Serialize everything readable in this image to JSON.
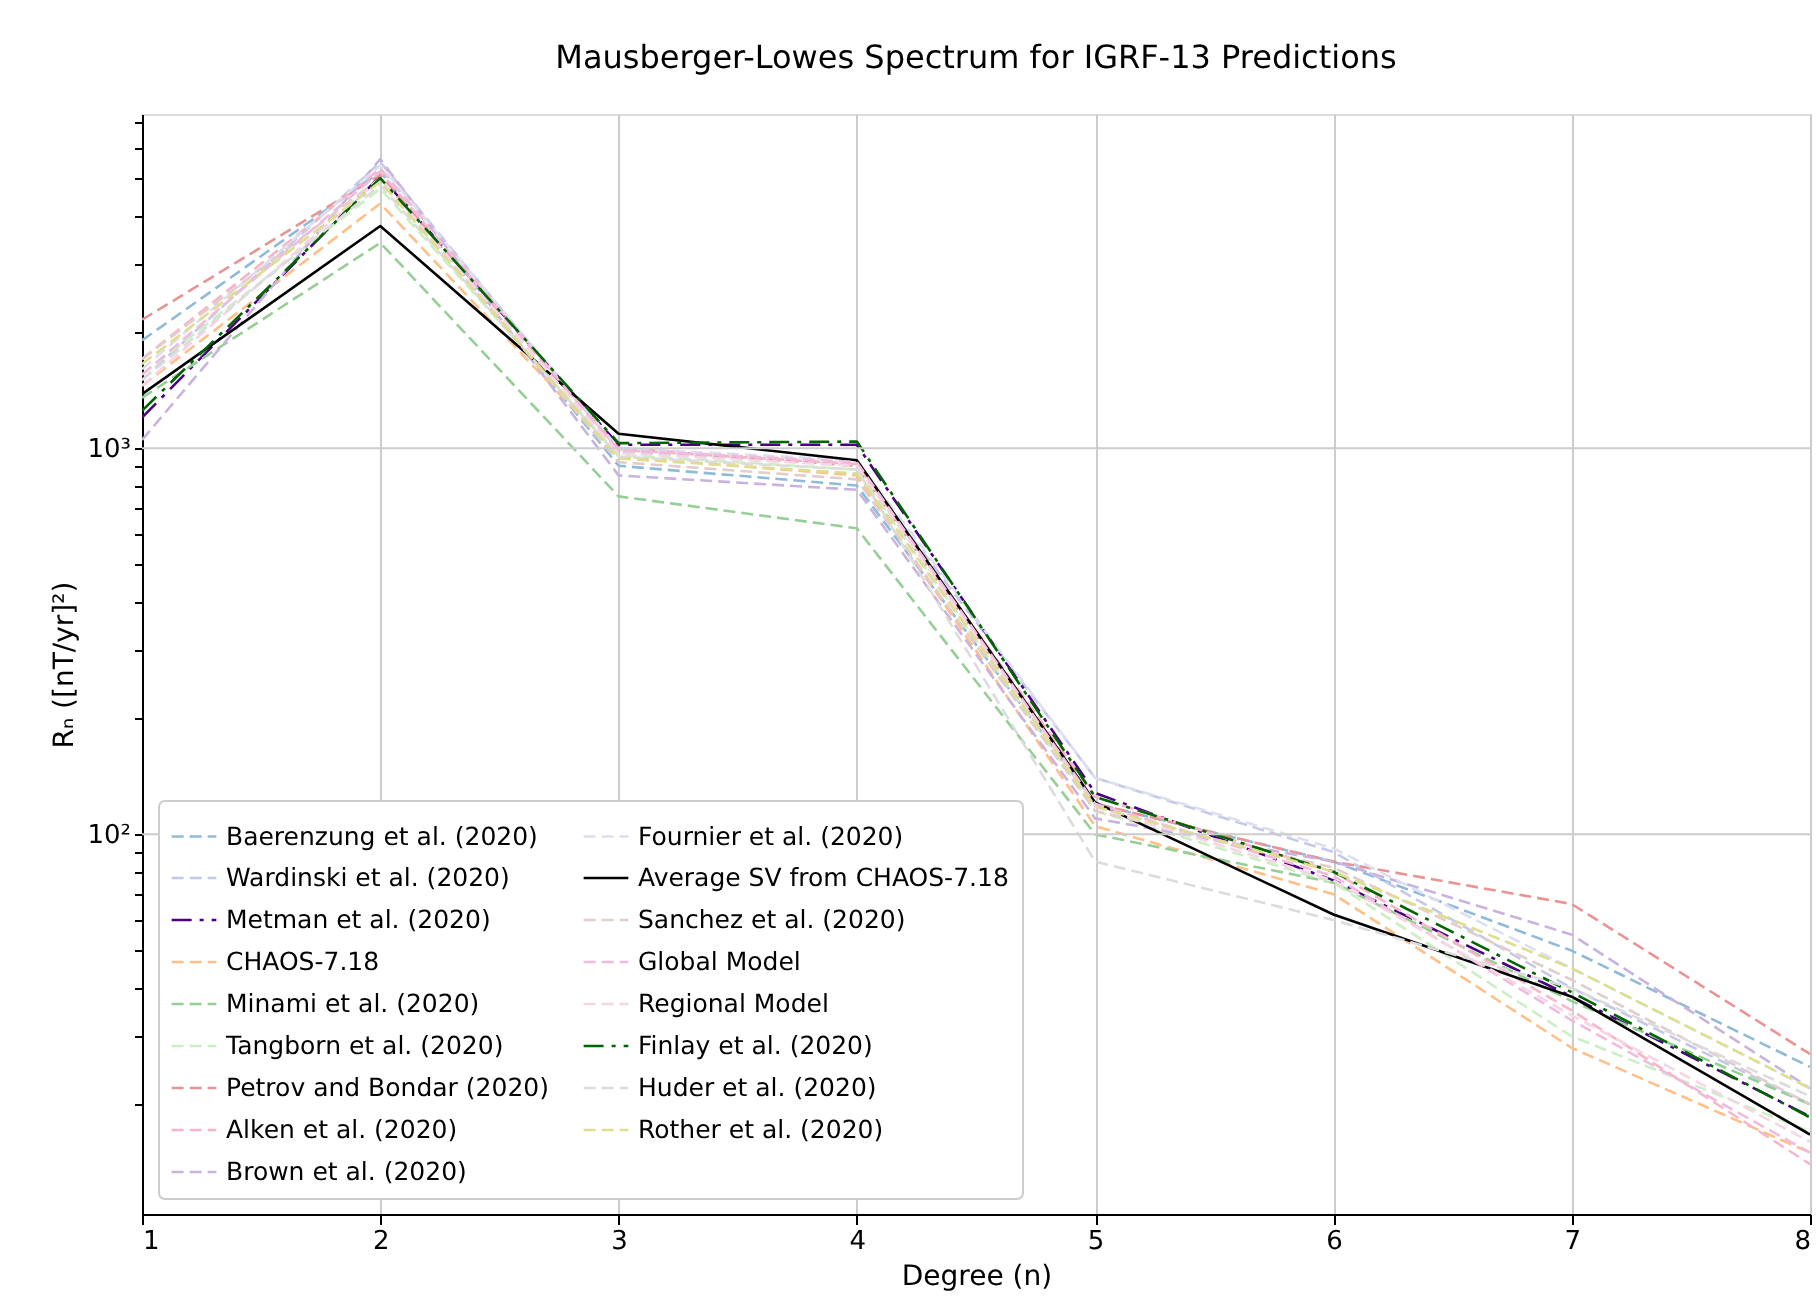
{
  "chart_data": {
    "type": "line",
    "title": "Mausberger-Lowes Spectrum for IGRF-13 Predictions",
    "xlabel": "Degree (n)",
    "ylabel": "Rₙ ([nT/yr]²)",
    "x": [
      1,
      2,
      3,
      4,
      5,
      6,
      7,
      8
    ],
    "xlim": [
      1,
      8
    ],
    "xticks": [
      1,
      2,
      3,
      4,
      5,
      6,
      7,
      8
    ],
    "ylim": [
      10.4,
      7330
    ],
    "log": true,
    "grid": true,
    "legend": "bottom left",
    "line_style": "dashed",
    "yticks": [
      {
        "value": 20,
        "label": null
      },
      {
        "value": 30,
        "label": null
      },
      {
        "value": 40,
        "label": null
      },
      {
        "value": 50,
        "label": null
      },
      {
        "value": 60,
        "label": null
      },
      {
        "value": 70,
        "label": null
      },
      {
        "value": 80,
        "label": null
      },
      {
        "value": 90,
        "label": null
      },
      {
        "value": 100,
        "label": "10²"
      },
      {
        "value": 200,
        "label": null
      },
      {
        "value": 300,
        "label": null
      },
      {
        "value": 400,
        "label": null
      },
      {
        "value": 500,
        "label": null
      },
      {
        "value": 600,
        "label": null
      },
      {
        "value": 700,
        "label": null
      },
      {
        "value": 800,
        "label": null
      },
      {
        "value": 900,
        "label": null
      },
      {
        "value": 1000,
        "label": "10³"
      },
      {
        "value": 2000,
        "label": null
      },
      {
        "value": 3000,
        "label": null
      },
      {
        "value": 4000,
        "label": null
      },
      {
        "value": 5000,
        "label": null
      },
      {
        "value": 6000,
        "label": null
      },
      {
        "value": 7000,
        "label": null
      }
    ],
    "series": [
      {
        "name": "Baerenzung et al. (2020)",
        "color": "#8fbbd9",
        "values": [
          1900,
          5200,
          900,
          800,
          120,
          85,
          50,
          25
        ]
      },
      {
        "name": "Wardinski et al. (2020)",
        "color": "#c5c8e8",
        "values": [
          1500,
          5500,
          980,
          900,
          140,
          90,
          40,
          20
        ]
      },
      {
        "name": "Metman et al. (2020)",
        "color": "#4b0082",
        "line_style": "dashdot",
        "values": [
          1200,
          5060,
          1020,
          1020,
          128,
          76,
          38,
          18.6
        ]
      },
      {
        "name": "CHAOS-7.18",
        "color": "#ffbf86",
        "values": [
          1450,
          4300,
          950,
          850,
          105,
          70,
          28,
          15
        ]
      },
      {
        "name": "Minami et al. (2020)",
        "color": "#95cf95",
        "values": [
          1350,
          3400,
          750,
          620,
          100,
          75,
          37,
          20
        ]
      },
      {
        "name": "Tangborn et al. (2020)",
        "color": "#cbefc4",
        "values": [
          1550,
          4700,
          960,
          880,
          115,
          75,
          30,
          17
        ]
      },
      {
        "name": "Petrov and Bondar (2020)",
        "color": "#ea9393",
        "values": [
          2150,
          5100,
          1000,
          900,
          120,
          85,
          66,
          27
        ]
      },
      {
        "name": "Alken et al. (2020)",
        "color": "#f7b6c8",
        "values": [
          1700,
          5300,
          990,
          910,
          125,
          80,
          35,
          14
        ]
      },
      {
        "name": "Brown et al. (2020)",
        "color": "#c9b3de",
        "values": [
          1050,
          5600,
          850,
          780,
          110,
          85,
          55,
          22
        ]
      },
      {
        "name": "Fournier et al. (2020)",
        "color": "#dcdff0",
        "values": [
          1600,
          5400,
          1000,
          930,
          140,
          92,
          45,
          22
        ]
      },
      {
        "name": "Average SV from CHAOS-7.18",
        "color": "#000000",
        "line_style": "solid",
        "values": [
          1380,
          3760,
          1090,
          930,
          121,
          62,
          38,
          16.7
        ]
      },
      {
        "name": "Sanchez et al. (2020)",
        "color": "#e1cdc9",
        "values": [
          1700,
          5000,
          920,
          830,
          115,
          82,
          42,
          20
        ]
      },
      {
        "name": "Global Model",
        "color": "#f1bbe0",
        "values": [
          1550,
          5200,
          990,
          920,
          120,
          78,
          33,
          15
        ]
      },
      {
        "name": "Regional Model",
        "color": "#f7d5e5",
        "values": [
          1450,
          5000,
          970,
          900,
          118,
          76,
          34,
          16
        ]
      },
      {
        "name": "Finlay et al. (2020)",
        "color": "#006400",
        "line_style": "dashdot",
        "values": [
          1250,
          5000,
          1030,
          1040,
          125,
          80,
          39,
          18.5
        ]
      },
      {
        "name": "Huder et al. (2020)",
        "color": "#dcdcdc",
        "values": [
          1500,
          4800,
          950,
          880,
          85,
          60,
          40,
          21
        ]
      },
      {
        "name": "Rother et al. (2020)",
        "color": "#dede90",
        "values": [
          1650,
          4900,
          940,
          860,
          118,
          80,
          45,
          22
        ]
      }
    ]
  }
}
